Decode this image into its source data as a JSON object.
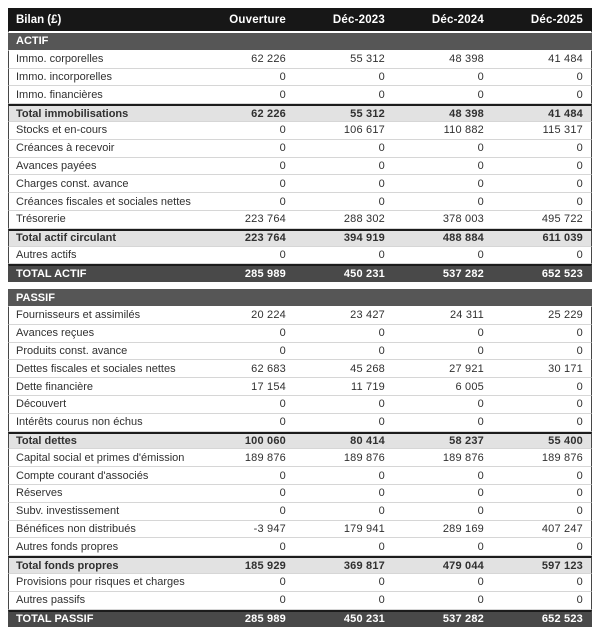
{
  "chart_data": {
    "type": "table",
    "title": "Bilan (£)",
    "columns": [
      "Ouverture",
      "Déc-2023",
      "Déc-2024",
      "Déc-2025"
    ],
    "sections": [
      {
        "name": "ACTIF",
        "rows": [
          {
            "label": "Immo. corporelles",
            "type": "normal",
            "values": [
              "62 226",
              "55 312",
              "48 398",
              "41 484"
            ]
          },
          {
            "label": "Immo. incorporelles",
            "type": "normal",
            "values": [
              "0",
              "0",
              "0",
              "0"
            ]
          },
          {
            "label": "Immo. financières",
            "type": "normal",
            "values": [
              "0",
              "0",
              "0",
              "0"
            ]
          },
          {
            "label": "Total immobilisations",
            "type": "subtotal",
            "values": [
              "62 226",
              "55 312",
              "48 398",
              "41 484"
            ]
          },
          {
            "label": "Stocks et en-cours",
            "type": "normal",
            "values": [
              "0",
              "106 617",
              "110 882",
              "115 317"
            ]
          },
          {
            "label": "Créances à recevoir",
            "type": "normal",
            "values": [
              "0",
              "0",
              "0",
              "0"
            ]
          },
          {
            "label": "Avances payées",
            "type": "normal",
            "values": [
              "0",
              "0",
              "0",
              "0"
            ]
          },
          {
            "label": "Charges const. avance",
            "type": "normal",
            "values": [
              "0",
              "0",
              "0",
              "0"
            ]
          },
          {
            "label": "Créances fiscales et sociales nettes",
            "type": "normal",
            "values": [
              "0",
              "0",
              "0",
              "0"
            ]
          },
          {
            "label": "Trésorerie",
            "type": "normal",
            "values": [
              "223 764",
              "288 302",
              "378 003",
              "495 722"
            ]
          },
          {
            "label": "Total actif circulant",
            "type": "subtotal",
            "values": [
              "223 764",
              "394 919",
              "488 884",
              "611 039"
            ]
          },
          {
            "label": "Autres actifs",
            "type": "normal",
            "values": [
              "0",
              "0",
              "0",
              "0"
            ]
          },
          {
            "label": "TOTAL ACTIF",
            "type": "grand",
            "values": [
              "285 989",
              "450 231",
              "537 282",
              "652 523"
            ]
          }
        ]
      },
      {
        "name": "PASSIF",
        "rows": [
          {
            "label": "Fournisseurs et assimilés",
            "type": "normal",
            "values": [
              "20 224",
              "23 427",
              "24 311",
              "25 229"
            ]
          },
          {
            "label": "Avances reçues",
            "type": "normal",
            "values": [
              "0",
              "0",
              "0",
              "0"
            ]
          },
          {
            "label": "Produits const. avance",
            "type": "normal",
            "values": [
              "0",
              "0",
              "0",
              "0"
            ]
          },
          {
            "label": "Dettes fiscales et sociales nettes",
            "type": "normal",
            "values": [
              "62 683",
              "45 268",
              "27 921",
              "30 171"
            ]
          },
          {
            "label": "Dette financière",
            "type": "normal",
            "values": [
              "17 154",
              "11 719",
              "6 005",
              "0"
            ]
          },
          {
            "label": "Découvert",
            "type": "normal",
            "values": [
              "0",
              "0",
              "0",
              "0"
            ]
          },
          {
            "label": "Intérêts courus non échus",
            "type": "normal",
            "values": [
              "0",
              "0",
              "0",
              "0"
            ]
          },
          {
            "label": "Total dettes",
            "type": "subtotal",
            "values": [
              "100 060",
              "80 414",
              "58 237",
              "55 400"
            ]
          },
          {
            "label": "Capital social et primes d'émission",
            "type": "normal",
            "values": [
              "189 876",
              "189 876",
              "189 876",
              "189 876"
            ]
          },
          {
            "label": "Compte courant d'associés",
            "type": "normal",
            "values": [
              "0",
              "0",
              "0",
              "0"
            ]
          },
          {
            "label": "Réserves",
            "type": "normal",
            "values": [
              "0",
              "0",
              "0",
              "0"
            ]
          },
          {
            "label": "Subv. investissement",
            "type": "normal",
            "values": [
              "0",
              "0",
              "0",
              "0"
            ]
          },
          {
            "label": "Bénéfices non distribués",
            "type": "normal",
            "values": [
              "-3 947",
              "179 941",
              "289 169",
              "407 247"
            ]
          },
          {
            "label": "Autres fonds propres",
            "type": "normal",
            "values": [
              "0",
              "0",
              "0",
              "0"
            ]
          },
          {
            "label": "Total fonds propres",
            "type": "subtotal",
            "values": [
              "185 929",
              "369 817",
              "479 044",
              "597 123"
            ]
          },
          {
            "label": "Provisions pour risques et charges",
            "type": "normal",
            "values": [
              "0",
              "0",
              "0",
              "0"
            ]
          },
          {
            "label": "Autres passifs",
            "type": "normal",
            "values": [
              "0",
              "0",
              "0",
              "0"
            ]
          },
          {
            "label": "TOTAL PASSIF",
            "type": "grand",
            "values": [
              "285 989",
              "450 231",
              "537 282",
              "652 523"
            ]
          }
        ]
      }
    ]
  },
  "colors": {
    "header_bg": "#171717",
    "header_text": "#ffffff",
    "section_bg": "#565656",
    "grand_total_bg": "#494949",
    "subtotal_bg": "#e2e2e2",
    "row_border": "#d6d6d6",
    "dark_border": "#1c1c1c"
  }
}
